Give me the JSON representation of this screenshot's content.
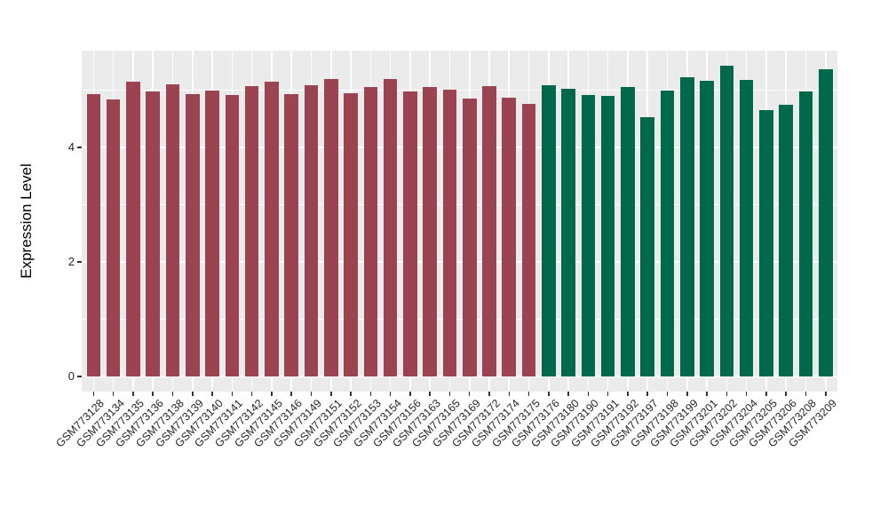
{
  "chart_data": {
    "type": "bar",
    "title": "",
    "xlabel": "",
    "ylabel": "Expression Level",
    "ylim": [
      0,
      5.7
    ],
    "yticks_major": [
      0,
      2,
      4
    ],
    "yticks_minor": [
      1,
      3,
      5
    ],
    "grid": "on",
    "legend": "none",
    "panel_background": "#EBEBEB",
    "grid_color": "#FFFFFF",
    "tick_color": "#333333",
    "label_color": "#262626",
    "group_colors": {
      "groupA": "#9B4351",
      "groupB": "#00694B"
    },
    "categories": [
      "GSM773128",
      "GSM773134",
      "GSM773135",
      "GSM773136",
      "GSM773138",
      "GSM773139",
      "GSM773140",
      "GSM773141",
      "GSM773142",
      "GSM773145",
      "GSM773146",
      "GSM773149",
      "GSM773151",
      "GSM773152",
      "GSM773153",
      "GSM773154",
      "GSM773156",
      "GSM773163",
      "GSM773165",
      "GSM773169",
      "GSM773172",
      "GSM773174",
      "GSM773175",
      "GSM773176",
      "GSM773180",
      "GSM773190",
      "GSM773191",
      "GSM773192",
      "GSM773197",
      "GSM773198",
      "GSM773199",
      "GSM773201",
      "GSM773202",
      "GSM773204",
      "GSM773205",
      "GSM773206",
      "GSM773208",
      "GSM773209"
    ],
    "values": [
      4.93,
      4.83,
      5.15,
      4.98,
      5.1,
      4.93,
      5.0,
      4.92,
      5.07,
      5.14,
      4.93,
      5.09,
      5.2,
      4.95,
      5.06,
      5.2,
      4.97,
      5.06,
      5.01,
      4.85,
      5.07,
      4.87,
      4.76,
      5.09,
      5.03,
      4.92,
      4.9,
      5.06,
      4.53,
      4.99,
      5.22,
      5.16,
      5.42,
      5.18,
      4.65,
      4.75,
      4.97,
      5.37
    ],
    "groups": [
      "groupA",
      "groupA",
      "groupA",
      "groupA",
      "groupA",
      "groupA",
      "groupA",
      "groupA",
      "groupA",
      "groupA",
      "groupA",
      "groupA",
      "groupA",
      "groupA",
      "groupA",
      "groupA",
      "groupA",
      "groupA",
      "groupA",
      "groupA",
      "groupA",
      "groupA",
      "groupA",
      "groupB",
      "groupB",
      "groupB",
      "groupB",
      "groupB",
      "groupB",
      "groupB",
      "groupB",
      "groupB",
      "groupB",
      "groupB",
      "groupB",
      "groupB",
      "groupB",
      "groupB"
    ]
  }
}
